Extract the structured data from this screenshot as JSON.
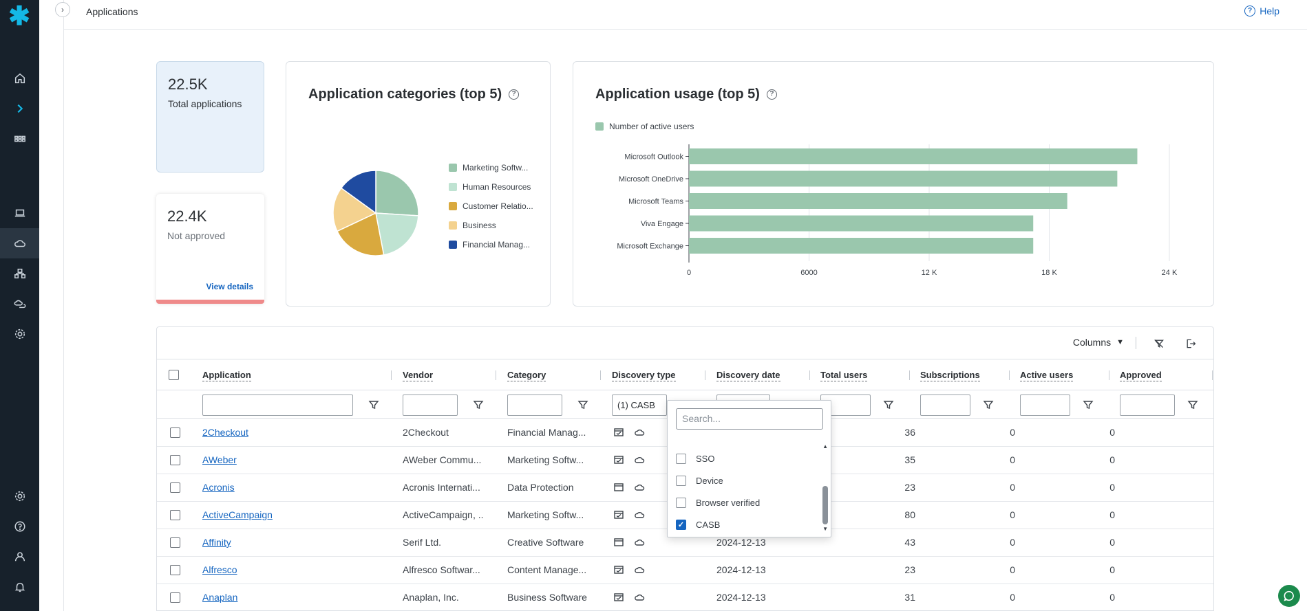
{
  "header": {
    "title": "Applications",
    "help_label": "Help"
  },
  "stats": {
    "total": {
      "value": "22.5K",
      "label": "Total applications"
    },
    "not_approved": {
      "value": "22.4K",
      "label": "Not approved",
      "link": "View details"
    }
  },
  "categories_card": {
    "title": "Application categories (top 5)",
    "legend": [
      {
        "label": "Marketing Softw...",
        "color": "#9ac7ad"
      },
      {
        "label": "Human Resources",
        "color": "#bfe3d2"
      },
      {
        "label": "Customer Relatio...",
        "color": "#d9a93e"
      },
      {
        "label": "Business",
        "color": "#f4d28f"
      },
      {
        "label": "Financial Manag...",
        "color": "#1f4ba0"
      }
    ]
  },
  "usage_card": {
    "title": "Application usage (top 5)",
    "legend_label": "Number of active users"
  },
  "chart_data": [
    {
      "type": "pie",
      "title": "Application categories (top 5)",
      "categories": [
        "Marketing Software",
        "Human Resources",
        "Customer Relations",
        "Business",
        "Financial Management"
      ],
      "values": [
        26,
        21,
        21,
        17,
        15
      ],
      "colors": [
        "#9ac7ad",
        "#bfe3d2",
        "#d9a93e",
        "#f4d28f",
        "#1f4ba0"
      ]
    },
    {
      "type": "bar",
      "orientation": "horizontal",
      "title": "Application usage (top 5)",
      "categories": [
        "Microsoft Outlook",
        "Microsoft OneDrive",
        "Microsoft Teams",
        "Viva Engage",
        "Microsoft Exchange"
      ],
      "series": [
        {
          "name": "Number of active users",
          "values": [
            22400,
            21400,
            18900,
            17200,
            17200
          ],
          "color": "#9ac7ad"
        }
      ],
      "xlim": [
        0,
        24000
      ],
      "xticks": [
        "0",
        "6000",
        "12 K",
        "18 K",
        "24 K"
      ],
      "grid": true
    }
  ],
  "toolbar": {
    "columns_label": "Columns"
  },
  "table": {
    "columns": [
      "Application",
      "Vendor",
      "Category",
      "Discovery type",
      "Discovery date",
      "Total users",
      "Subscriptions",
      "Active users",
      "Approved"
    ],
    "discovery_filter_value": "(1) CASB",
    "rows": [
      {
        "app": "2Checkout",
        "vendor": "2Checkout",
        "category": "Financial Manag...",
        "date": "",
        "total": "36",
        "subs": "0",
        "active": "0"
      },
      {
        "app": "AWeber",
        "vendor": "AWeber Commu...",
        "category": "Marketing Softw...",
        "date": "",
        "total": "35",
        "subs": "0",
        "active": "0"
      },
      {
        "app": "Acronis",
        "vendor": "Acronis Internati...",
        "category": "Data Protection",
        "date": "",
        "total": "23",
        "subs": "0",
        "active": "0"
      },
      {
        "app": "ActiveCampaign",
        "vendor": "ActiveCampaign, ...",
        "category": "Marketing Softw...",
        "date": "",
        "total": "80",
        "subs": "0",
        "active": "0"
      },
      {
        "app": "Affinity",
        "vendor": "Serif Ltd.",
        "category": "Creative Software",
        "date": "2024-12-13",
        "total": "43",
        "subs": "0",
        "active": "0"
      },
      {
        "app": "Alfresco",
        "vendor": "Alfresco Softwar...",
        "category": "Content Manage...",
        "date": "2024-12-13",
        "total": "23",
        "subs": "0",
        "active": "0"
      },
      {
        "app": "Anaplan",
        "vendor": "Anaplan, Inc.",
        "category": "Business Software",
        "date": "2024-12-13",
        "total": "31",
        "subs": "0",
        "active": "0"
      }
    ]
  },
  "dropdown": {
    "search_placeholder": "Search...",
    "options": [
      {
        "label": "SSO",
        "checked": false
      },
      {
        "label": "Device",
        "checked": false
      },
      {
        "label": "Browser verified",
        "checked": false
      },
      {
        "label": "CASB",
        "checked": true
      }
    ]
  }
}
